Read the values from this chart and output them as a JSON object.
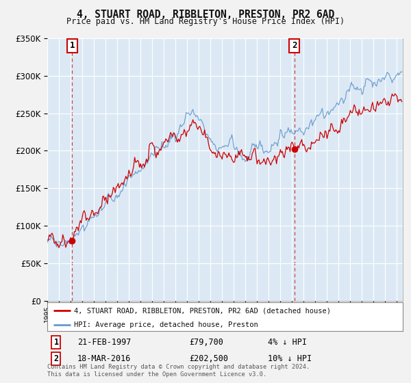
{
  "title": "4, STUART ROAD, RIBBLETON, PRESTON, PR2 6AD",
  "subtitle": "Price paid vs. HM Land Registry's House Price Index (HPI)",
  "ylim": [
    0,
    350000
  ],
  "yticks": [
    0,
    50000,
    100000,
    150000,
    200000,
    250000,
    300000,
    350000
  ],
  "xlim_start": 1995.0,
  "xlim_end": 2025.5,
  "background_color": "#dce9f5",
  "fig_bg_color": "#f2f2f2",
  "grid_color": "#ffffff",
  "red_line_color": "#cc0000",
  "blue_line_color": "#6699cc",
  "transaction1_x": 1997.13,
  "transaction1_y": 79700,
  "transaction2_x": 2016.21,
  "transaction2_y": 202500,
  "legend_red": "4, STUART ROAD, RIBBLETON, PRESTON, PR2 6AD (detached house)",
  "legend_blue": "HPI: Average price, detached house, Preston",
  "note1_date": "21-FEB-1997",
  "note1_price": "£79,700",
  "note1_hpi": "4% ↓ HPI",
  "note2_date": "18-MAR-2016",
  "note2_price": "£202,500",
  "note2_hpi": "10% ↓ HPI",
  "footer": "Contains HM Land Registry data © Crown copyright and database right 2024.\nThis data is licensed under the Open Government Licence v3.0."
}
